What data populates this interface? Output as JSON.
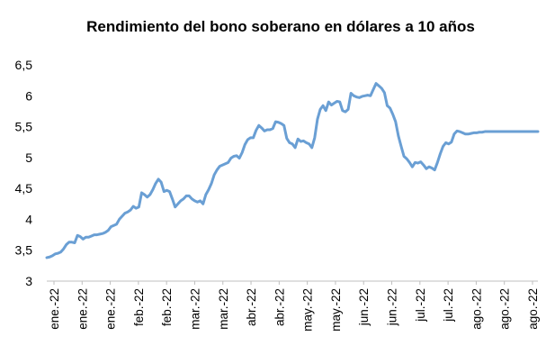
{
  "chart_data": {
    "type": "line",
    "title": "Rendimiento del bono soberano en dólares a 10 años",
    "xlabel": "",
    "ylabel": "",
    "ylim": [
      3,
      6.5
    ],
    "yticks": [
      "3",
      "3,5",
      "4",
      "4,5",
      "5",
      "5,5",
      "6",
      "6,5"
    ],
    "ytick_values": [
      3,
      3.5,
      4,
      4.5,
      5,
      5.5,
      6,
      6.5
    ],
    "x_tick_labels": [
      "ene.-22",
      "ene.-22",
      "ene.-22",
      "feb.-22",
      "feb.-22",
      "mar.-22",
      "mar.-22",
      "abr.-22",
      "abr.-22",
      "may.-22",
      "may.-22",
      "jun.-22",
      "jun.-22",
      "jul.-22",
      "jul.-22",
      "ago.-22",
      "ago.-22",
      "ago.-22"
    ],
    "grid": false,
    "legend": "none",
    "series_color": "#6a9fd4",
    "series": [
      {
        "x": [
          0,
          1,
          2,
          3,
          4,
          5,
          6,
          7,
          8,
          9,
          10,
          11,
          12,
          13,
          14,
          15,
          16,
          17,
          18,
          19,
          20,
          21,
          22,
          23,
          24,
          25,
          26,
          27,
          28,
          29,
          30,
          31,
          32,
          33,
          34,
          35,
          36,
          37,
          38,
          39,
          40,
          41,
          42,
          43,
          44,
          45,
          46,
          47,
          48,
          49,
          50,
          51,
          52,
          53,
          54,
          55,
          56,
          57,
          58,
          59,
          60,
          61,
          62,
          63,
          64,
          65,
          66,
          67,
          68,
          69,
          70,
          71,
          72,
          73,
          74,
          75,
          76,
          77,
          78,
          79,
          80,
          81,
          82,
          83,
          84,
          85,
          86,
          87,
          88,
          89,
          90,
          91,
          92,
          93,
          94,
          95,
          96,
          97,
          98,
          99,
          100,
          101,
          102,
          103,
          104,
          105,
          106,
          107,
          108,
          109,
          110,
          111,
          112,
          113,
          114,
          115,
          116,
          117,
          118,
          119,
          120,
          121,
          122,
          123,
          124,
          125,
          126,
          127,
          128,
          129,
          130,
          131,
          132,
          133,
          134,
          135,
          136,
          137,
          138,
          139,
          140,
          141,
          142,
          143,
          144,
          145,
          146,
          147,
          148,
          149,
          150,
          151,
          152,
          153,
          154,
          155,
          156,
          157,
          158,
          159,
          160,
          161,
          162,
          163,
          164,
          165,
          166,
          167,
          168,
          169,
          170,
          171,
          172,
          173,
          174,
          175,
          176
        ],
        "values": [
          3.38,
          3.39,
          3.41,
          3.44,
          3.45,
          3.47,
          3.52,
          3.59,
          3.63,
          3.63,
          3.62,
          3.74,
          3.72,
          3.68,
          3.71,
          3.71,
          3.73,
          3.75,
          3.75,
          3.76,
          3.77,
          3.79,
          3.82,
          3.88,
          3.9,
          3.92,
          4.0,
          4.05,
          4.1,
          4.12,
          4.15,
          4.21,
          4.18,
          4.2,
          4.43,
          4.4,
          4.36,
          4.4,
          4.48,
          4.58,
          4.65,
          4.6,
          4.45,
          4.47,
          4.45,
          4.33,
          4.2,
          4.25,
          4.3,
          4.33,
          4.38,
          4.38,
          4.33,
          4.3,
          4.28,
          4.3,
          4.25,
          4.4,
          4.48,
          4.58,
          4.72,
          4.8,
          4.86,
          4.88,
          4.9,
          4.92,
          4.99,
          5.02,
          5.03,
          4.99,
          5.08,
          5.21,
          5.29,
          5.32,
          5.32,
          5.44,
          5.52,
          5.48,
          5.43,
          5.45,
          5.45,
          5.47,
          5.58,
          5.57,
          5.55,
          5.52,
          5.31,
          5.24,
          5.22,
          5.16,
          5.3,
          5.26,
          5.27,
          5.24,
          5.22,
          5.16,
          5.32,
          5.62,
          5.78,
          5.84,
          5.76,
          5.9,
          5.85,
          5.88,
          5.91,
          5.9,
          5.76,
          5.74,
          5.78,
          6.04,
          6.0,
          5.98,
          5.97,
          5.99,
          6.0,
          6.01,
          6.0,
          6.1,
          6.2,
          6.16,
          6.12,
          6.05,
          5.84,
          5.8,
          5.7,
          5.58,
          5.35,
          5.18,
          5.02,
          4.98,
          4.92,
          4.85,
          4.92,
          4.91,
          4.93,
          4.88,
          4.82,
          4.85,
          4.83,
          4.8,
          4.92,
          5.06,
          5.18,
          5.24,
          5.22,
          5.25,
          5.38,
          5.43,
          5.42,
          5.4,
          5.38,
          5.38,
          5.39,
          5.4,
          5.4,
          5.41,
          5.41,
          5.42,
          5.42,
          5.42,
          5.42,
          5.42,
          5.42,
          5.42,
          5.42,
          5.42,
          5.42,
          5.42,
          5.42,
          5.42,
          5.42,
          5.42,
          5.42,
          5.42,
          5.42,
          5.42,
          5.42
        ]
      }
    ]
  }
}
